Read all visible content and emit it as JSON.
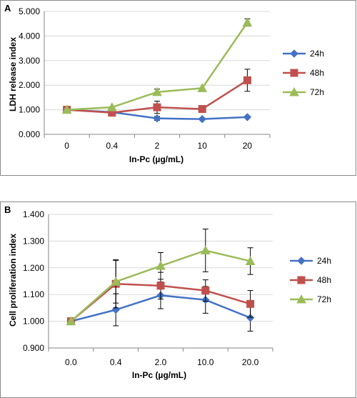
{
  "chart_data": [
    {
      "type": "line",
      "panel_label": "A",
      "categories": [
        "0",
        "0.4",
        "2",
        "10",
        "20"
      ],
      "ylabel": "LDH release index",
      "xlabel": "In-Pc (µg/mL)",
      "ylim": [
        0,
        5
      ],
      "yticks": [
        "0.000",
        "1.000",
        "2.000",
        "3.000",
        "4.000",
        "5.000"
      ],
      "ytick_values": [
        0,
        1,
        2,
        3,
        4,
        5
      ],
      "grid": true,
      "legend_position": "right",
      "series": [
        {
          "name": "24h",
          "color": "#4472C4",
          "marker": "diamond",
          "values": [
            1.0,
            0.9,
            0.65,
            0.62,
            0.7
          ],
          "errors": [
            0,
            0,
            0.08,
            0,
            0
          ]
        },
        {
          "name": "48h",
          "color": "#C0504D",
          "marker": "square",
          "values": [
            1.0,
            0.88,
            1.1,
            1.03,
            2.2
          ],
          "errors": [
            0,
            0,
            0.25,
            0,
            0.45
          ]
        },
        {
          "name": "72h",
          "color": "#9BBB59",
          "marker": "triangle",
          "values": [
            1.0,
            1.1,
            1.72,
            1.88,
            4.55
          ],
          "errors": [
            0,
            0,
            0.12,
            0,
            0.15
          ]
        }
      ]
    },
    {
      "type": "line",
      "panel_label": "B",
      "categories": [
        "0.0",
        "0.4",
        "2.0",
        "10.0",
        "20.0"
      ],
      "ylabel": "Cell proliferation index",
      "xlabel": "In-Pc (µg/mL)",
      "ylim": [
        0.9,
        1.4
      ],
      "yticks": [
        "0.900",
        "1.000",
        "1.100",
        "1.200",
        "1.300",
        "1.400"
      ],
      "ytick_values": [
        0.9,
        1.0,
        1.1,
        1.2,
        1.3,
        1.4
      ],
      "grid": true,
      "legend_position": "right",
      "series": [
        {
          "name": "24h",
          "color": "#4472C4",
          "marker": "diamond",
          "values": [
            1.0,
            1.043,
            1.097,
            1.08,
            1.013
          ],
          "errors": [
            0,
            0.06,
            0.05,
            0.05,
            0.05
          ]
        },
        {
          "name": "48h",
          "color": "#C0504D",
          "marker": "square",
          "values": [
            1.0,
            1.14,
            1.133,
            1.115,
            1.065
          ],
          "errors": [
            0,
            0.09,
            0.05,
            0.04,
            0.05
          ]
        },
        {
          "name": "72h",
          "color": "#9BBB59",
          "marker": "triangle",
          "values": [
            1.0,
            1.148,
            1.207,
            1.265,
            1.225
          ],
          "errors": [
            0,
            0.08,
            0.05,
            0.08,
            0.05
          ]
        }
      ]
    }
  ]
}
